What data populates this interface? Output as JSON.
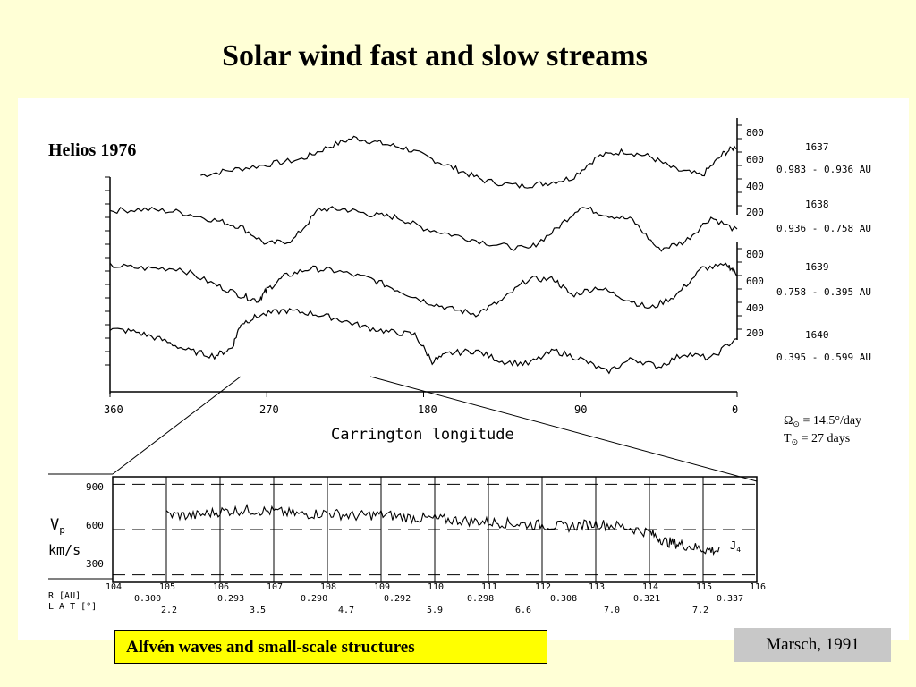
{
  "slide": {
    "title": "Solar wind fast and slow streams",
    "caption_left": "Alfvén waves and small-scale structures",
    "caption_right": "Marsch, 1991"
  },
  "colors": {
    "background": "#ffffd6",
    "figure_background": "#ffffff",
    "caption_left_background": "#ffff00",
    "caption_right_background": "#c8c8c8",
    "ink": "#000000"
  },
  "chart_data": [
    {
      "type": "line",
      "annotation": "Helios  1976",
      "xlabel": "Carrington longitude",
      "x_ticks": [
        "360",
        "270",
        "180",
        "90",
        "0"
      ],
      "xlim": [
        360,
        0
      ],
      "y_ticks_top": [
        "800",
        "600",
        "400",
        "200"
      ],
      "y_ticks_bottom": [
        "800",
        "600",
        "400",
        "200"
      ],
      "series": [
        {
          "name": "1637",
          "range": "0.983 - 0.936  AU",
          "x": [
            308,
            290,
            270,
            250,
            235,
            220,
            205,
            190,
            175,
            160,
            145,
            125,
            110,
            95,
            80,
            65,
            50,
            35,
            20,
            8,
            0
          ],
          "y": [
            480,
            520,
            560,
            600,
            690,
            760,
            720,
            680,
            600,
            520,
            440,
            400,
            420,
            460,
            620,
            660,
            620,
            520,
            480,
            640,
            700
          ]
        },
        {
          "name": "1638",
          "range": "0.936 - 0.758  AU",
          "x": [
            360,
            340,
            320,
            300,
            285,
            270,
            255,
            240,
            225,
            210,
            195,
            180,
            160,
            140,
            120,
            105,
            90,
            75,
            60,
            45,
            30,
            15,
            0
          ],
          "y": [
            550,
            560,
            540,
            480,
            430,
            300,
            330,
            560,
            560,
            520,
            500,
            420,
            360,
            300,
            260,
            400,
            580,
            520,
            480,
            260,
            320,
            500,
            400
          ]
        },
        {
          "name": "1639",
          "range": "0.758 - 0.395  AU",
          "x": [
            360,
            340,
            320,
            300,
            285,
            275,
            270,
            260,
            245,
            230,
            210,
            195,
            180,
            165,
            150,
            135,
            120,
            105,
            95,
            80,
            65,
            50,
            35,
            20,
            5,
            0
          ],
          "y": [
            740,
            720,
            720,
            600,
            520,
            480,
            560,
            660,
            720,
            700,
            640,
            560,
            480,
            420,
            380,
            480,
            640,
            640,
            520,
            580,
            500,
            420,
            520,
            720,
            740,
            680
          ]
        },
        {
          "name": "1640",
          "range": "0.395 - 0.599  AU",
          "x": [
            360,
            345,
            330,
            315,
            300,
            290,
            285,
            275,
            260,
            245,
            230,
            215,
            200,
            185,
            175,
            165,
            150,
            135,
            120,
            105,
            90,
            75,
            60,
            45,
            30,
            15,
            0
          ],
          "y": [
            600,
            580,
            520,
            440,
            400,
            460,
            640,
            700,
            740,
            720,
            680,
            620,
            580,
            560,
            360,
            420,
            440,
            360,
            340,
            440,
            380,
            280,
            380,
            320,
            420,
            380,
            540
          ]
        }
      ]
    },
    {
      "type": "line",
      "ylabel_line1": "V",
      "ylabel_sub": "p",
      "ylabel_line2": "km/s",
      "y_ticks": [
        "900",
        "600",
        "300"
      ],
      "ylim": [
        250,
        950
      ],
      "r_label": "R [AU]",
      "lat_label": "L A T  [°]",
      "day_labels": [
        "104",
        "105",
        "106",
        "107",
        "108",
        "109",
        "110",
        "111",
        "112",
        "113",
        "114",
        "115",
        "116"
      ],
      "r_values": [
        "0.300",
        "0.293",
        "0.290",
        "0.292",
        "0.298",
        "0.308",
        "0.321",
        "0.337"
      ],
      "lat_values": [
        "2.2",
        "3.5",
        "4.7",
        "5.9",
        "6.6",
        "7.0",
        "7.2"
      ],
      "end_marker": "J",
      "end_marker_sub": "4",
      "series": [
        {
          "name": "",
          "x": [
            105,
            105.5,
            106,
            106.5,
            107,
            107.5,
            108,
            108.5,
            109,
            109.5,
            110,
            110.5,
            111,
            111.5,
            112,
            112.5,
            113,
            113.5,
            114,
            114.3,
            114.6,
            115,
            115.3
          ],
          "y": [
            700,
            690,
            720,
            730,
            720,
            700,
            710,
            690,
            700,
            680,
            670,
            660,
            650,
            640,
            630,
            620,
            640,
            620,
            580,
            520,
            500,
            470,
            460
          ]
        }
      ]
    }
  ]
}
